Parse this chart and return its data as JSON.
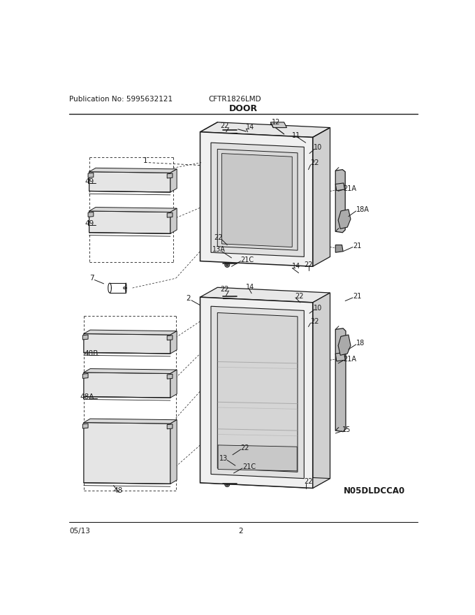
{
  "title": "DOOR",
  "subtitle_left": "Publication No: 5995632121",
  "subtitle_center": "CFTR1826LMD",
  "footer_left": "05/13",
  "footer_center": "2",
  "watermark": "N05DLDCCA0",
  "bg_color": "#ffffff",
  "line_color": "#1a1a1a",
  "fig_width": 6.8,
  "fig_height": 8.8,
  "dpi": 100
}
